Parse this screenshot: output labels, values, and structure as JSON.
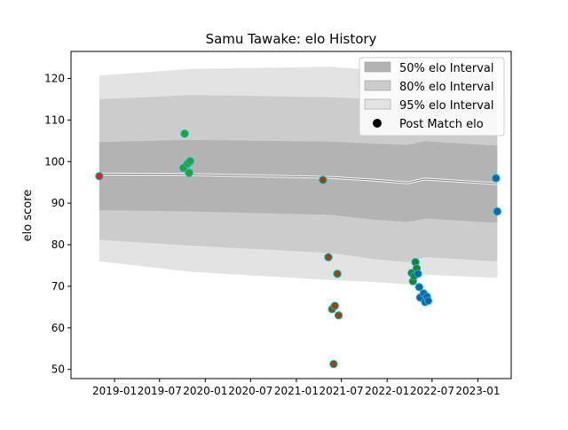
{
  "chart_data": {
    "type": "scatter",
    "title": "Samu Tawake: elo History",
    "xlabel": "",
    "ylabel": "elo score",
    "x_axis": {
      "min": "2018-07-10",
      "max": "2023-05-15",
      "ticks": [
        "2019-01-01",
        "2019-07-01",
        "2020-01-01",
        "2020-07-01",
        "2021-01-01",
        "2021-07-01",
        "2022-01-01",
        "2022-07-01",
        "2023-01-01"
      ],
      "tick_labels": [
        "2019-01",
        "2019-07",
        "2020-01",
        "2020-07",
        "2021-01",
        "2021-07",
        "2022-01",
        "2022-07",
        "2023-01"
      ]
    },
    "y_axis": {
      "min": 47.8,
      "max": 126.5,
      "ticks": [
        50,
        60,
        70,
        80,
        90,
        100,
        110,
        120
      ]
    },
    "grid": false,
    "legend": {
      "placement": "top-right",
      "entries": [
        {
          "label": "50% elo Interval",
          "kind": "band",
          "color": "#b3b3b3"
        },
        {
          "label": "80% elo Interval",
          "kind": "band",
          "color": "#cccccc"
        },
        {
          "label": "95% elo Interval",
          "kind": "band",
          "color": "#e3e3e3"
        },
        {
          "label": "Post Match elo",
          "kind": "marker",
          "color": "#000000"
        }
      ]
    },
    "bands": {
      "x": [
        "2018-11-01",
        "2019-11-01",
        "2021-05-20",
        "2021-11-15",
        "2022-03-25",
        "2022-06-01",
        "2023-03-20"
      ],
      "mean": [
        97.0,
        96.9,
        96.2,
        95.5,
        94.9,
        95.8,
        94.7
      ],
      "p50": {
        "lower": [
          88.3,
          88.0,
          87.2,
          86.0,
          85.5,
          86.3,
          85.3
        ],
        "upper": [
          104.7,
          105.2,
          104.8,
          104.3,
          104.0,
          104.9,
          103.8
        ]
      },
      "p80": {
        "lower": [
          81.2,
          79.8,
          78.0,
          76.5,
          75.8,
          77.0,
          76.0
        ],
        "upper": [
          115.0,
          116.0,
          115.5,
          115.0,
          114.5,
          115.5,
          114.2
        ]
      },
      "p95": {
        "lower": [
          76.0,
          73.5,
          71.5,
          71.0,
          70.5,
          72.8,
          72.0
        ],
        "upper": [
          120.7,
          122.3,
          122.8,
          122.0,
          121.0,
          122.0,
          120.0
        ]
      }
    },
    "series": [
      {
        "color": "#d62728",
        "points": [
          {
            "x": "2018-11-01",
            "y": 96.5
          }
        ]
      },
      {
        "color": "#2ca02c",
        "points": [
          {
            "x": "2019-10-10",
            "y": 106.7
          },
          {
            "x": "2019-10-05",
            "y": 98.5
          },
          {
            "x": "2019-10-22",
            "y": 99.5
          },
          {
            "x": "2019-11-01",
            "y": 100.1
          },
          {
            "x": "2019-10-28",
            "y": 97.3
          }
        ]
      },
      {
        "color": "#8c4a12",
        "points": [
          {
            "x": "2021-04-18",
            "y": 95.6
          },
          {
            "x": "2021-05-10",
            "y": 77.0
          },
          {
            "x": "2021-05-25",
            "y": 64.5
          },
          {
            "x": "2021-05-31",
            "y": 51.3
          },
          {
            "x": "2021-06-05",
            "y": 65.3
          },
          {
            "x": "2021-06-15",
            "y": 73.0
          },
          {
            "x": "2021-06-20",
            "y": 63.0
          }
        ]
      },
      {
        "color": "#2a7a2a",
        "points": [
          {
            "x": "2022-04-10",
            "y": 73.2
          },
          {
            "x": "2022-04-15",
            "y": 71.2
          },
          {
            "x": "2022-04-20",
            "y": 72.5
          },
          {
            "x": "2022-04-25",
            "y": 75.8
          },
          {
            "x": "2022-04-30",
            "y": 74.3
          }
        ]
      },
      {
        "color": "#1f5fa8",
        "points": [
          {
            "x": "2022-05-05",
            "y": 73.0
          },
          {
            "x": "2022-05-10",
            "y": 69.8
          },
          {
            "x": "2022-05-14",
            "y": 67.3
          },
          {
            "x": "2022-05-28",
            "y": 68.3
          },
          {
            "x": "2022-06-03",
            "y": 66.2
          },
          {
            "x": "2022-06-10",
            "y": 67.5
          },
          {
            "x": "2022-06-15",
            "y": 66.5
          },
          {
            "x": "2023-03-15",
            "y": 96.0
          },
          {
            "x": "2023-03-20",
            "y": 88.0
          }
        ]
      }
    ],
    "marker_edge_color": "#00bcd4"
  }
}
